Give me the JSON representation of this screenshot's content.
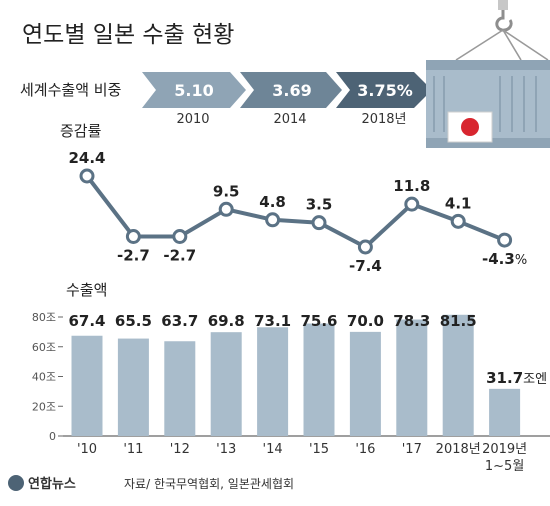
{
  "title": "연도별 일본 수출 현황",
  "share": {
    "label": "세계수출액 비중",
    "items": [
      {
        "value": "5.10",
        "year": "2010"
      },
      {
        "value": "3.69",
        "year": "2014"
      },
      {
        "value": "3.75%",
        "year": "2018년"
      }
    ]
  },
  "growth_label": "증감률",
  "exports_label": "수출액",
  "unit_suffix": "조엔",
  "source": "자료/ 한국무역협회, 일본관세협회",
  "logo": "연합뉴스",
  "colors": {
    "bar": "#a9bccb",
    "line": "#5b7285",
    "arrow_light": "#8fa4b5",
    "arrow_mid": "#6e8597",
    "arrow_dark": "#4d6375",
    "container": "#a9bccb",
    "flag_red": "#d8262f"
  },
  "chart_data": [
    {
      "type": "line",
      "title": "증감률",
      "categories": [
        "'10",
        "'11",
        "'12",
        "'13",
        "'14",
        "'15",
        "'16",
        "'17",
        "2018년",
        "2019년 1~5월"
      ],
      "values": [
        24.4,
        -2.7,
        -2.7,
        9.5,
        4.8,
        3.5,
        -7.4,
        11.8,
        4.1,
        -4.3
      ],
      "labels": [
        "24.4",
        "-2.7",
        "-2.7",
        "9.5",
        "4.8",
        "3.5",
        "-7.4",
        "11.8",
        "4.1",
        "-4.3"
      ],
      "last_suffix": "%"
    },
    {
      "type": "bar",
      "title": "수출액",
      "categories": [
        "'10",
        "'11",
        "'12",
        "'13",
        "'14",
        "'15",
        "'16",
        "'17",
        "2018년",
        "2019년 1~5월"
      ],
      "values": [
        67.4,
        65.5,
        63.7,
        69.8,
        73.1,
        75.6,
        70.0,
        78.3,
        81.5,
        31.7
      ],
      "labels": [
        "67.4",
        "65.5",
        "63.7",
        "69.8",
        "73.1",
        "75.6",
        "70.0",
        "78.3",
        "81.5",
        "31.7"
      ],
      "ylim": [
        0,
        80
      ],
      "yticks": [
        "0",
        "20조",
        "40조",
        "60조",
        "80조"
      ],
      "grid": false
    }
  ]
}
